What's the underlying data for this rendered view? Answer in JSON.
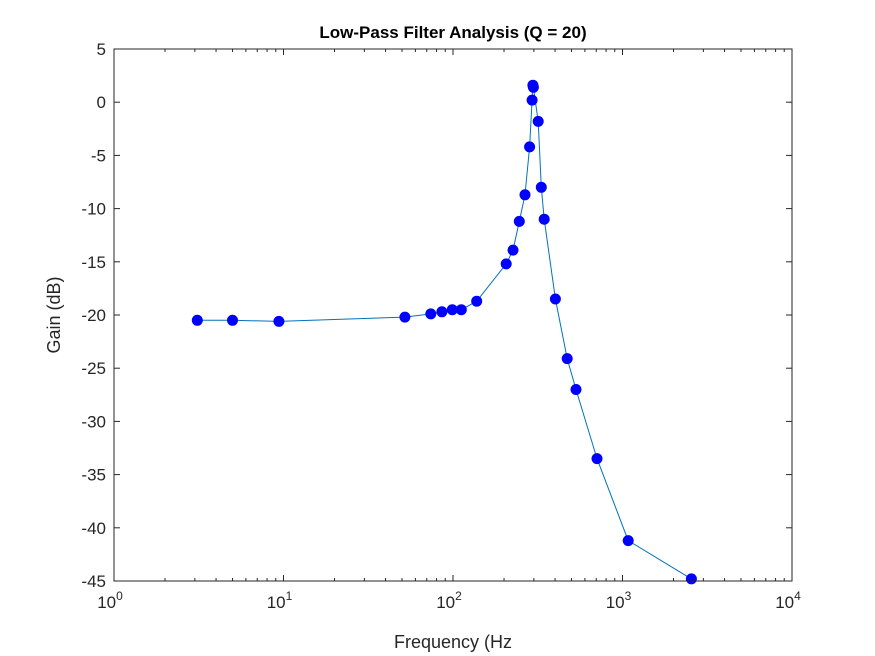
{
  "chart_data": {
    "type": "line",
    "title": "Low-Pass Filter Analysis (Q = 20)",
    "xlabel": "Frequency (Hz",
    "ylabel": "Gain (dB)",
    "xscale": "log",
    "xlim": [
      1,
      10000
    ],
    "ylim": [
      -45,
      5
    ],
    "xticks": [
      {
        "base": "10",
        "exp": "0"
      },
      {
        "base": "10",
        "exp": "1"
      },
      {
        "base": "10",
        "exp": "2"
      },
      {
        "base": "10",
        "exp": "3"
      },
      {
        "base": "10",
        "exp": "4"
      }
    ],
    "yticks": [
      "5",
      "0",
      "-5",
      "-10",
      "-15",
      "-20",
      "-25",
      "-30",
      "-35",
      "-40",
      "-45"
    ],
    "grid": false,
    "line_color": "#0072BD",
    "marker_color": "#0000FF",
    "series": [
      {
        "x": [
          3.1,
          5.0,
          9.4,
          52,
          74,
          86,
          99,
          112,
          138,
          206,
          226,
          246,
          266,
          283,
          293,
          296,
          298,
          318,
          332,
          345,
          402,
          472,
          532,
          707,
          1080,
          2550
        ],
        "y": [
          -20.5,
          -20.5,
          -20.6,
          -20.2,
          -19.9,
          -19.7,
          -19.5,
          -19.5,
          -18.7,
          -15.2,
          -13.9,
          -11.2,
          -8.7,
          -4.2,
          0.2,
          1.6,
          1.4,
          -1.8,
          -8.0,
          -11.0,
          -18.5,
          -24.1,
          -27.0,
          -33.5,
          -41.2,
          -44.8
        ]
      }
    ]
  }
}
